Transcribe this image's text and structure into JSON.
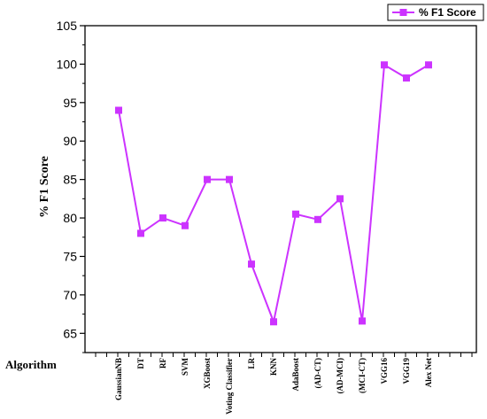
{
  "chart_data": {
    "type": "line",
    "xlabel": "Algorithm",
    "ylabel": "% F1 Score",
    "ylim": [
      62.5,
      105
    ],
    "yticks": [
      65,
      70,
      75,
      80,
      85,
      90,
      95,
      100,
      105
    ],
    "grid": false,
    "legend_position": "top-right",
    "categories": [
      "GaussianNB",
      "DT",
      "RF",
      "SVM",
      "XGBoost",
      "Voting Classifier",
      "LR",
      "KNN",
      "AdaBoost",
      "(AD-CT)",
      "(AD-MCI)",
      "(MCI-CT)",
      "VGG16",
      "VGG19",
      "Alex Net"
    ],
    "series": [
      {
        "name": "% F1 Score",
        "color": "#cc33ff",
        "marker": "square",
        "values": [
          94,
          78,
          80,
          79,
          85,
          85,
          74,
          66.5,
          80.5,
          79.8,
          82.5,
          66.6,
          99.9,
          98.2,
          99.9
        ]
      }
    ]
  }
}
